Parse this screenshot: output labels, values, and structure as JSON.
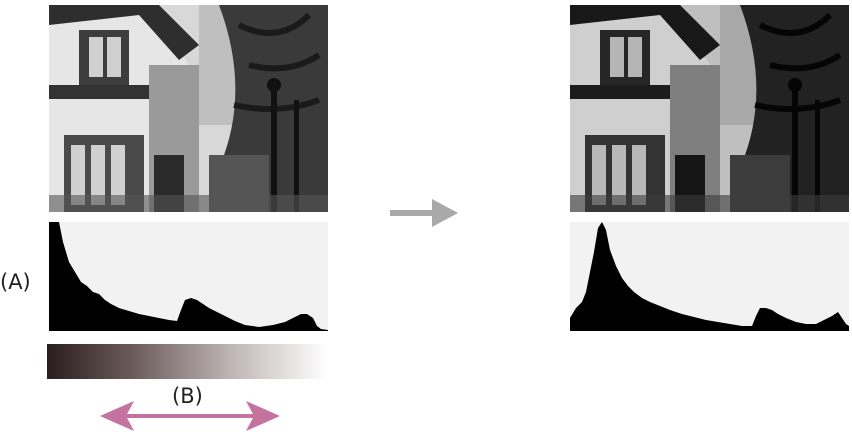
{
  "labels": {
    "histogram_marker": "(A)",
    "range_marker": "(B)"
  },
  "colors": {
    "histogram_fill": "#000000",
    "histogram_background": "#f2f2f2",
    "range_arrow": "#c4729e",
    "transform_arrow": "#a9a9a9"
  },
  "icons": {
    "range_arrow": "double-headed-arrow-icon",
    "transform_arrow": "right-arrow-icon"
  }
}
